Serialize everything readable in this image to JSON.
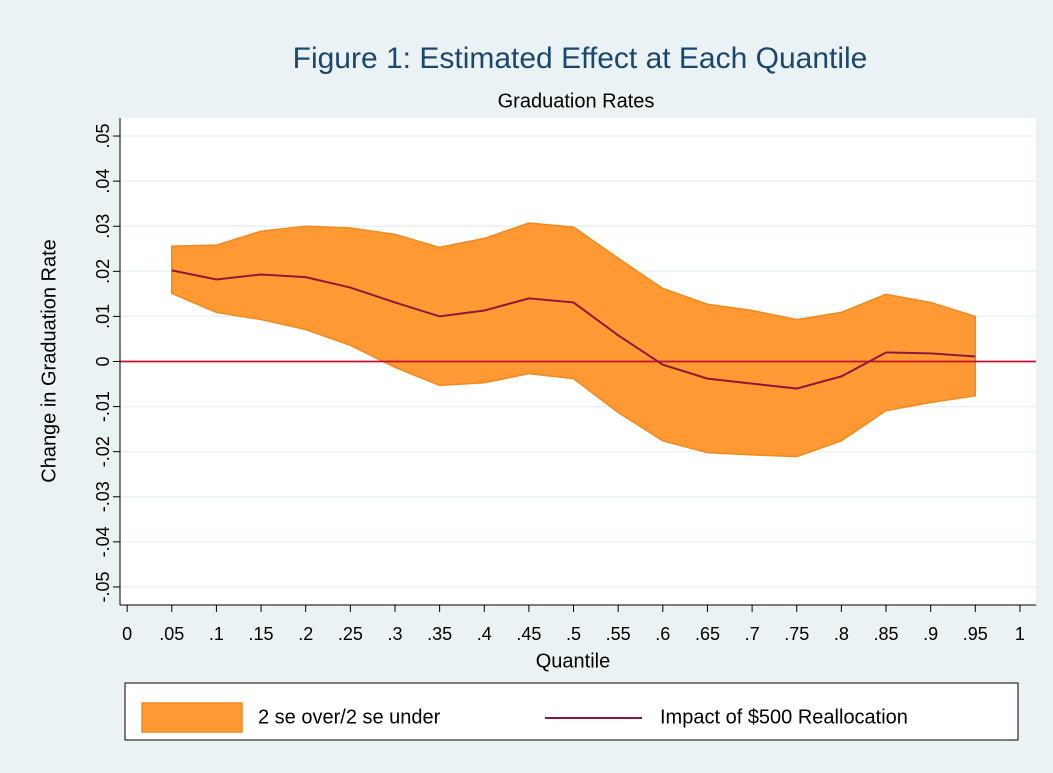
{
  "chart_data": {
    "type": "band-line",
    "title": "Figure 1: Estimated Effect at Each Quantile",
    "subtitle": "Graduation Rates",
    "x_label": "Quantile",
    "y_label": "Change in Graduation Rate",
    "x": [
      0.05,
      0.1,
      0.15,
      0.2,
      0.25,
      0.3,
      0.35,
      0.4,
      0.45,
      0.5,
      0.55,
      0.6,
      0.65,
      0.7,
      0.75,
      0.8,
      0.85,
      0.9,
      0.95
    ],
    "series": [
      {
        "name": "2 se over/2 se under",
        "type": "band",
        "color": "#ff9933",
        "edge": "#f08a1e",
        "upper": [
          0.0256,
          0.0258,
          0.0289,
          0.03,
          0.0296,
          0.0282,
          0.0253,
          0.0273,
          0.0307,
          0.0298,
          0.0229,
          0.0162,
          0.0127,
          0.0113,
          0.0093,
          0.0109,
          0.0149,
          0.0131,
          0.01
        ],
        "lower": [
          0.0151,
          0.0109,
          0.0093,
          0.0071,
          0.0036,
          -0.0013,
          -0.0053,
          -0.0047,
          -0.0027,
          -0.0038,
          -0.0113,
          -0.0176,
          -0.0202,
          -0.0207,
          -0.0211,
          -0.0176,
          -0.0109,
          -0.0091,
          -0.0076
        ]
      },
      {
        "name": "Impact of $500 Reallocation",
        "type": "line",
        "color": "#8b1a3a",
        "values": [
          0.0202,
          0.0182,
          0.0193,
          0.0187,
          0.0164,
          0.0131,
          0.01,
          0.0113,
          0.014,
          0.0131,
          0.0058,
          -0.0007,
          -0.0038,
          -0.0049,
          -0.006,
          -0.0033,
          0.002,
          0.0018,
          0.0011
        ]
      }
    ],
    "reference_line": {
      "value": 0,
      "color": "#c8102e"
    },
    "xlim": [
      -0.008,
      1.018
    ],
    "ylim": [
      -0.054,
      0.054
    ],
    "xticks": [
      0,
      {
        "value": 0.05,
        "label": ".05"
      },
      {
        "value": 0.1,
        "label": ".1"
      },
      {
        "value": 0.15,
        "label": ".15"
      },
      {
        "value": 0.2,
        "label": ".2"
      },
      {
        "value": 0.25,
        "label": ".25"
      },
      {
        "value": 0.3,
        "label": ".3"
      },
      {
        "value": 0.35,
        "label": ".35"
      },
      {
        "value": 0.4,
        "label": ".4"
      },
      {
        "value": 0.45,
        "label": ".45"
      },
      {
        "value": 0.5,
        "label": ".5"
      },
      {
        "value": 0.55,
        "label": ".55"
      },
      {
        "value": 0.6,
        "label": ".6"
      },
      {
        "value": 0.65,
        "label": ".65"
      },
      {
        "value": 0.7,
        "label": ".7"
      },
      {
        "value": 0.75,
        "label": ".75"
      },
      {
        "value": 0.8,
        "label": ".8"
      },
      {
        "value": 0.85,
        "label": ".85"
      },
      {
        "value": 0.9,
        "label": ".9"
      },
      {
        "value": 0.95,
        "label": ".95"
      },
      1
    ],
    "yticks": [
      {
        "value": -0.05,
        "label": "-.05"
      },
      {
        "value": -0.04,
        "label": "-.04"
      },
      {
        "value": -0.03,
        "label": "-.03"
      },
      {
        "value": -0.02,
        "label": "-.02"
      },
      {
        "value": -0.01,
        "label": "-.01"
      },
      0,
      {
        "value": 0.01,
        "label": ".01"
      },
      {
        "value": 0.02,
        "label": ".02"
      },
      {
        "value": 0.03,
        "label": ".03"
      },
      {
        "value": 0.04,
        "label": ".04"
      },
      {
        "value": 0.05,
        "label": ".05"
      }
    ],
    "grid": true
  }
}
